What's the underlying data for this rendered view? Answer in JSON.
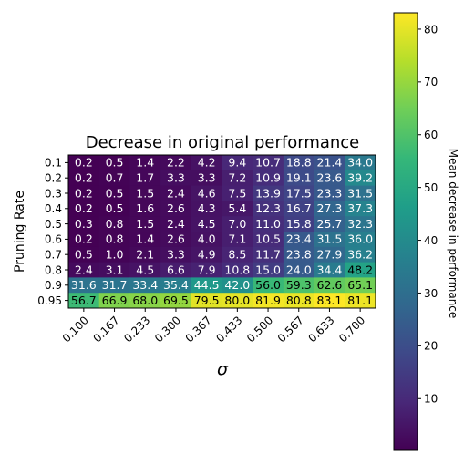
{
  "chart_data": {
    "type": "heatmap",
    "title": "Decrease in original performance",
    "xlabel": "σ",
    "ylabel": "Pruning Rate",
    "x_categories": [
      "0.100",
      "0.167",
      "0.233",
      "0.300",
      "0.367",
      "0.433",
      "0.500",
      "0.567",
      "0.633",
      "0.700"
    ],
    "y_categories": [
      "0.1",
      "0.2",
      "0.3",
      "0.4",
      "0.5",
      "0.6",
      "0.7",
      "0.8",
      "0.9",
      "0.95"
    ],
    "values": [
      [
        0.2,
        0.5,
        1.4,
        2.2,
        4.2,
        9.4,
        10.7,
        18.8,
        21.4,
        34.0
      ],
      [
        0.2,
        0.7,
        1.7,
        3.3,
        3.3,
        7.2,
        10.9,
        19.1,
        23.6,
        39.2
      ],
      [
        0.2,
        0.5,
        1.5,
        2.4,
        4.6,
        7.5,
        13.9,
        17.5,
        23.3,
        31.5
      ],
      [
        0.2,
        0.5,
        1.6,
        2.6,
        4.3,
        5.4,
        12.3,
        16.7,
        27.3,
        37.3
      ],
      [
        0.3,
        0.8,
        1.5,
        2.4,
        4.5,
        7.0,
        11.0,
        15.8,
        25.7,
        32.3
      ],
      [
        0.2,
        0.8,
        1.4,
        2.6,
        4.0,
        7.1,
        10.5,
        23.4,
        31.5,
        36.0
      ],
      [
        0.5,
        1.0,
        2.1,
        3.3,
        4.9,
        8.5,
        11.7,
        23.8,
        27.9,
        36.2
      ],
      [
        2.4,
        3.1,
        4.5,
        6.6,
        7.9,
        10.8,
        15.0,
        24.0,
        34.4,
        48.2
      ],
      [
        31.6,
        31.7,
        33.4,
        35.4,
        44.5,
        42.0,
        56.0,
        59.3,
        62.6,
        65.1
      ],
      [
        56.7,
        66.9,
        68.0,
        69.5,
        79.5,
        80.0,
        81.9,
        80.8,
        83.1,
        81.1
      ]
    ],
    "colormap": "viridis",
    "vmin": 0.2,
    "vmax": 83.1,
    "colorbar": {
      "label": "Mean decrease in performance",
      "ticks": [
        10,
        20,
        30,
        40,
        50,
        60,
        70,
        80
      ]
    }
  }
}
